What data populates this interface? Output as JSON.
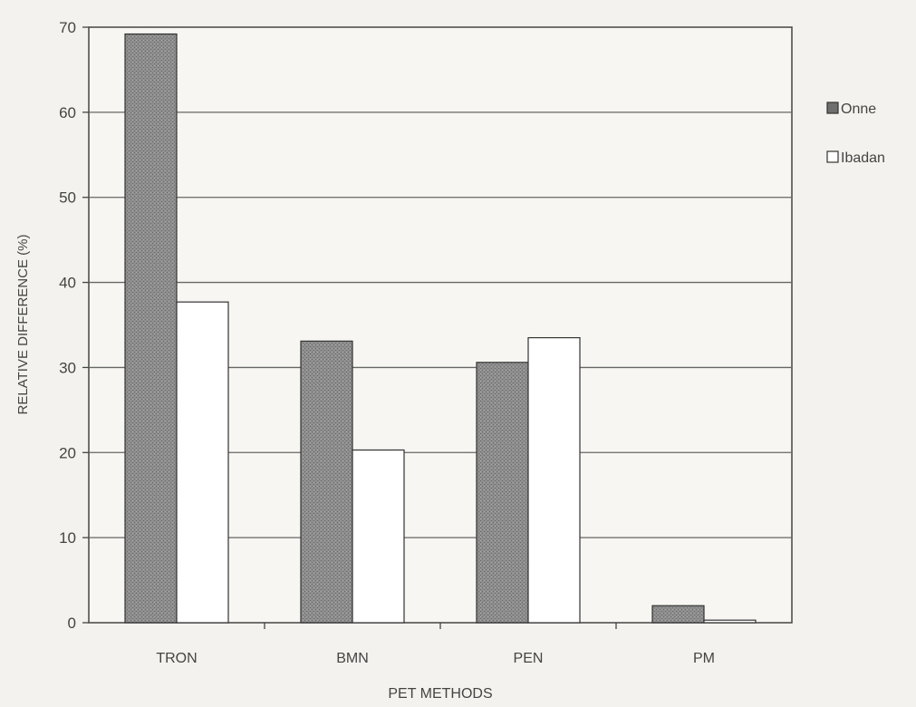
{
  "chart_data": {
    "type": "bar",
    "categories": [
      "TRON",
      "BMN",
      "PEN",
      "PM"
    ],
    "series": [
      {
        "name": "Onne",
        "values": [
          69.2,
          33.1,
          30.6,
          2.0
        ]
      },
      {
        "name": "Ibadan",
        "values": [
          37.7,
          20.3,
          33.5,
          0.3
        ]
      }
    ],
    "title": "",
    "xlabel": "PET METHODS",
    "ylabel": "RELATIVE DIFFERENCE  (%)",
    "ylim": [
      0,
      70
    ],
    "yticks": [
      0,
      10,
      20,
      30,
      40,
      50,
      60,
      70
    ],
    "grid": true,
    "legend": "right",
    "colors": {
      "Onne": "#8e8e8e",
      "Ibadan": "#ffffff",
      "grid": "#666666",
      "axis": "#444444"
    }
  }
}
